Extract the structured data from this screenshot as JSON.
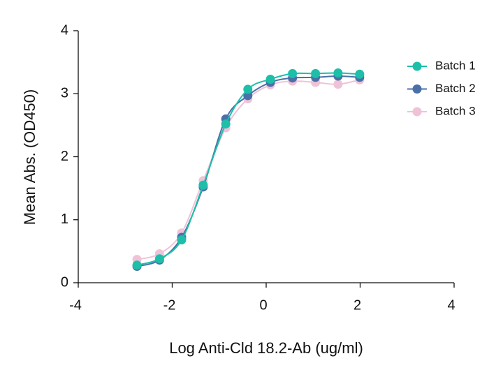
{
  "chart_data": {
    "type": "scatter",
    "x_label": "Log Anti-Cld 18.2-Ab (ug/ml)",
    "y_label": "Mean Abs. (OD450)",
    "x": [
      -2.75,
      -2.27,
      -1.8,
      -1.34,
      -0.86,
      -0.39,
      0.09,
      0.56,
      1.05,
      1.53,
      1.99
    ],
    "series": [
      {
        "name": "Batch 1",
        "color": "#1dbfa9",
        "values": [
          0.28,
          0.38,
          0.68,
          1.55,
          2.52,
          3.07,
          3.23,
          3.32,
          3.32,
          3.33,
          3.31
        ]
      },
      {
        "name": "Batch 2",
        "color": "#4a70a8",
        "values": [
          0.26,
          0.36,
          0.72,
          1.52,
          2.6,
          2.97,
          3.18,
          3.25,
          3.26,
          3.28,
          3.26
        ]
      },
      {
        "name": "Batch 3",
        "color": "#efc2d7",
        "values": [
          0.37,
          0.46,
          0.79,
          1.62,
          2.46,
          2.92,
          3.14,
          3.2,
          3.18,
          3.15,
          3.22
        ]
      }
    ],
    "xlim": [
      -4,
      4
    ],
    "xticks": [
      -4,
      -2,
      0,
      2,
      4
    ],
    "ylim": [
      0,
      4
    ],
    "yticks": [
      0,
      1,
      2,
      3,
      4
    ],
    "grid": false,
    "legend": "upper right"
  }
}
